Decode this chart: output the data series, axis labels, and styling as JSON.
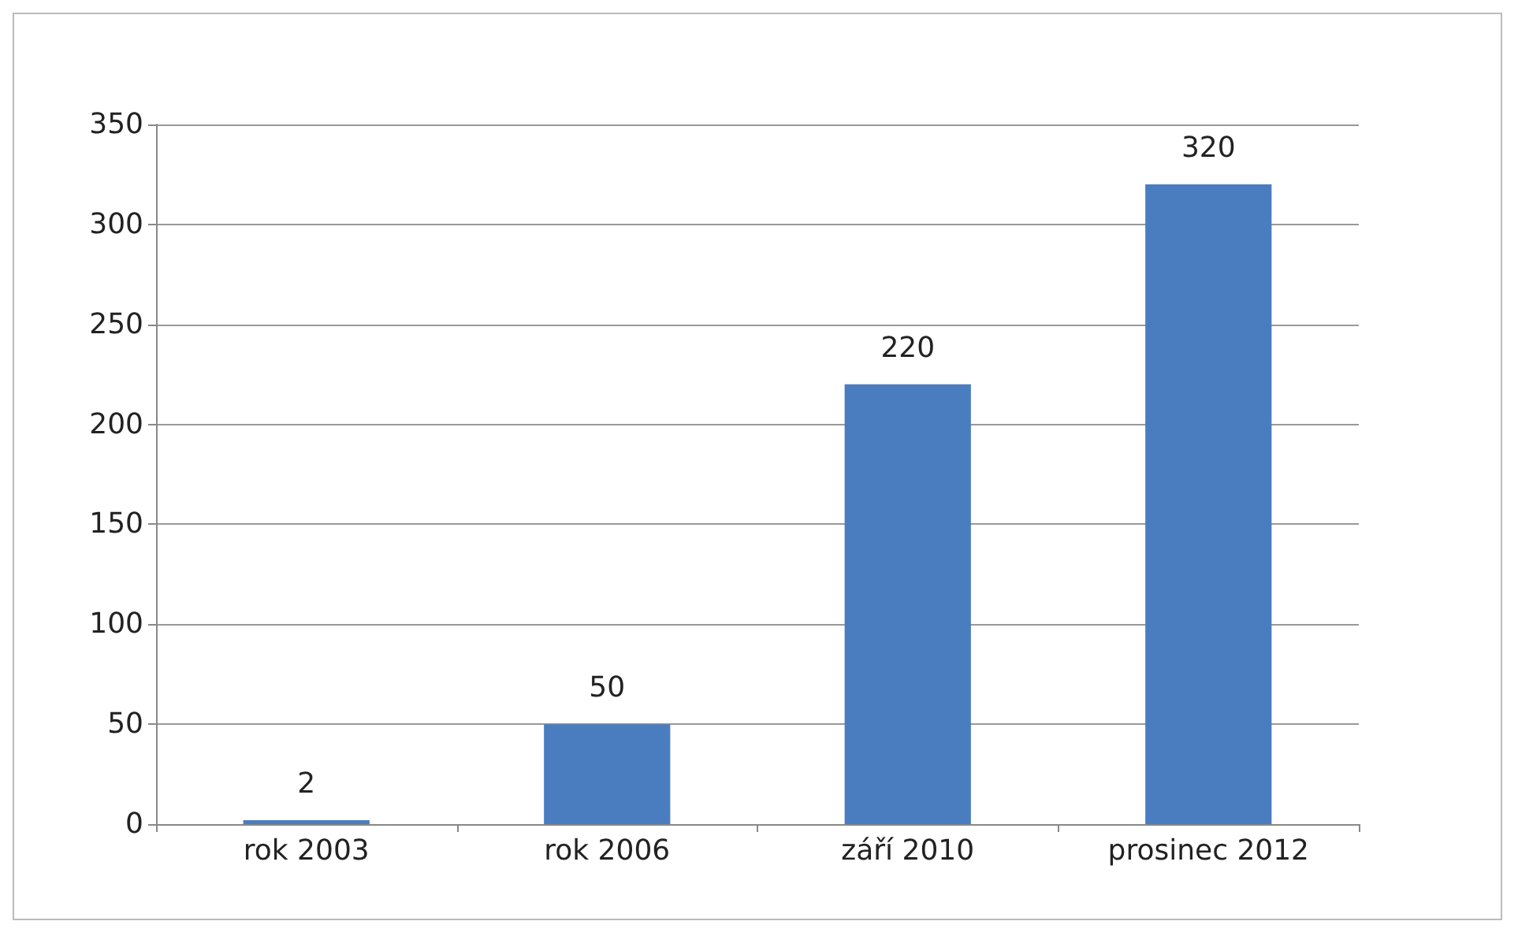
{
  "chart_data": {
    "type": "bar",
    "categories": [
      "rok 2003",
      "rok 2006",
      "září 2010",
      "prosinec 2012"
    ],
    "values": [
      2,
      50,
      220,
      320
    ],
    "color": "#4a7dc0",
    "data_labels": true,
    "ylim": [
      0,
      350
    ],
    "yticks": [
      0,
      50,
      100,
      150,
      200,
      250,
      300,
      350
    ],
    "grid": "y"
  }
}
